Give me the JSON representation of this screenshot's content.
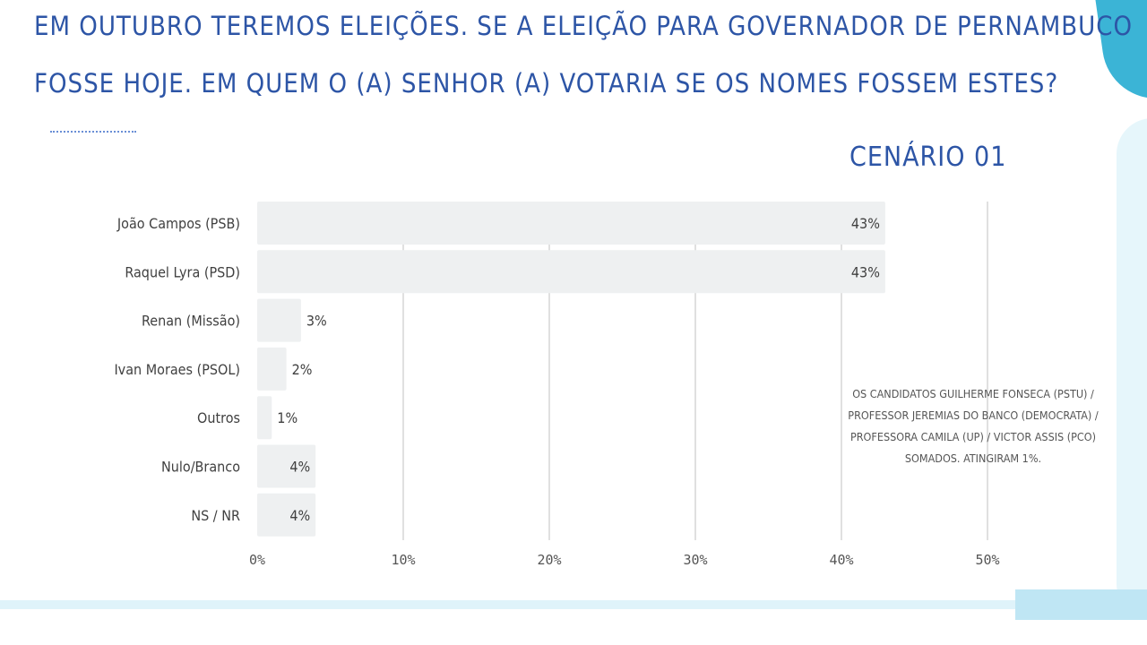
{
  "title": {
    "line1": "EM OUTUBRO TEREMOS ELEIÇÕES. SE A ELEIÇÃO PARA GOVERNADOR DE PERNAMBUCO",
    "line2": "FOSSE HOJE. EM QUEM O (A) SENHOR (A) VOTARIA SE OS NOMES FOSSEM ESTES?"
  },
  "subtitle": "CENÁRIO 01",
  "note": "OS CANDIDATOS GUILHERME FONSECA (PSTU) / PROFESSOR JEREMIAS DO BANCO (DEMOCRATA) / PROFESSORA CAMILA (UP) / VICTOR ASSIS (PCO) SOMADOS. ATINGIRAM 1%.",
  "colors": {
    "title": "#2d55a6",
    "bar": "#eef0f1",
    "grid": "#d6d6d6",
    "label": "#404040",
    "accent": "#3bb4d6"
  },
  "chart_data": {
    "type": "bar",
    "orientation": "horizontal",
    "categories": [
      "João Campos (PSB)",
      "Raquel Lyra (PSD)",
      "Renan (Missão)",
      "Ivan Moraes (PSOL)",
      "Outros",
      "Nulo/Branco",
      "NS / NR"
    ],
    "values": [
      43,
      43,
      3,
      2,
      1,
      4,
      4
    ],
    "value_labels": [
      "43%",
      "43%",
      "3%",
      "2%",
      "1%",
      "4%",
      "4%"
    ],
    "xlim": [
      0,
      50
    ],
    "ticks": [
      0,
      10,
      20,
      30,
      40,
      50
    ],
    "tick_labels": [
      "0%",
      "10%",
      "20%",
      "30%",
      "40%",
      "50%"
    ],
    "grid": true,
    "legend": "none"
  }
}
